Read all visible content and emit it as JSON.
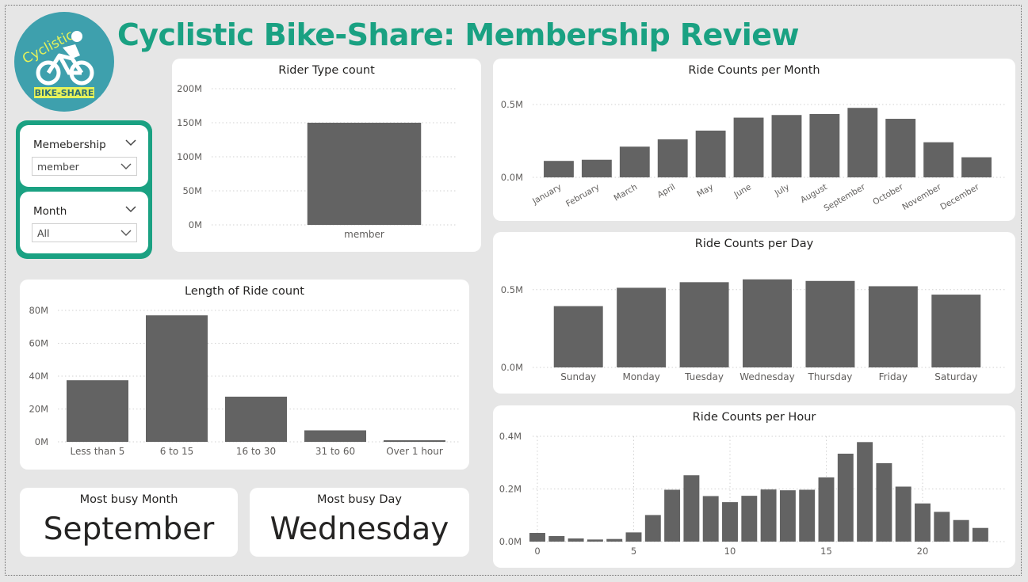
{
  "header": {
    "title": "Cyclistic Bike-Share: Membership Review",
    "logo_top_text": "Cyclistic",
    "logo_bottom_text": "BIKE-SHARE",
    "logo_icon": "cyclist-icon"
  },
  "slicers": {
    "membership": {
      "label": "Memebership",
      "value": "member"
    },
    "month": {
      "label": "Month",
      "value": "All"
    }
  },
  "kpis": {
    "busy_month": {
      "label": "Most busy Month",
      "value": "September"
    },
    "busy_day": {
      "label": "Most busy Day",
      "value": "Wednesday"
    }
  },
  "colors": {
    "accent": "#1aa182",
    "bar": "#636363",
    "logo_bg": "#3ea0ad",
    "logo_band": "#e6f25a"
  },
  "chart_data": [
    {
      "id": "rider",
      "type": "bar",
      "title": "Rider Type count",
      "categories": [
        "member"
      ],
      "values": [
        150000000
      ],
      "ylim": [
        0,
        200000000
      ],
      "yticks": [
        0,
        50000000,
        100000000,
        150000000,
        200000000
      ],
      "ytick_labels": [
        "0M",
        "50M",
        "100M",
        "150M",
        "200M"
      ],
      "grid": true
    },
    {
      "id": "length",
      "type": "bar",
      "title": "Length of Ride count",
      "categories": [
        "Less than 5",
        "6 to 15",
        "16 to 30",
        "31 to 60",
        "Over 1 hour"
      ],
      "values": [
        37500000,
        77000000,
        27500000,
        7000000,
        1000000
      ],
      "ylim": [
        0,
        80000000
      ],
      "yticks": [
        0,
        20000000,
        40000000,
        60000000,
        80000000
      ],
      "ytick_labels": [
        "0M",
        "20M",
        "40M",
        "60M",
        "80M"
      ],
      "grid": true
    },
    {
      "id": "month",
      "type": "bar",
      "title": "Ride Counts per Month",
      "categories": [
        "January",
        "February",
        "March",
        "April",
        "May",
        "June",
        "July",
        "August",
        "September",
        "October",
        "November",
        "December"
      ],
      "values": [
        113000,
        121000,
        211000,
        261000,
        321000,
        410000,
        428000,
        435000,
        477000,
        402000,
        241000,
        138000
      ],
      "ylim": [
        0,
        500000
      ],
      "yticks": [
        0,
        500000
      ],
      "ytick_labels": [
        "0.0M",
        "0.5M"
      ],
      "grid": true
    },
    {
      "id": "day",
      "type": "bar",
      "title": "Ride Counts per Day",
      "categories": [
        "Sunday",
        "Monday",
        "Tuesday",
        "Wednesday",
        "Thursday",
        "Friday",
        "Saturday"
      ],
      "values": [
        394000,
        512000,
        548000,
        566000,
        556000,
        522000,
        468000
      ],
      "ylim": [
        0,
        560000
      ],
      "yticks": [
        0,
        500000
      ],
      "ytick_labels": [
        "0.0M",
        "0.5M"
      ],
      "grid": true
    },
    {
      "id": "hour",
      "type": "bar",
      "title": "Ride Counts per Hour",
      "x": [
        0,
        1,
        2,
        3,
        4,
        5,
        6,
        7,
        8,
        9,
        10,
        11,
        12,
        13,
        14,
        15,
        16,
        17,
        18,
        19,
        20,
        21,
        22,
        23
      ],
      "values": [
        33000,
        21000,
        12000,
        8000,
        10000,
        35000,
        101000,
        197000,
        252000,
        173000,
        150000,
        174000,
        198000,
        195000,
        197000,
        244000,
        334000,
        378000,
        298000,
        209000,
        145000,
        113000,
        82000,
        52000
      ],
      "xticks": [
        0,
        5,
        10,
        15,
        20
      ],
      "ylim": [
        0,
        400000
      ],
      "yticks": [
        0,
        200000,
        400000
      ],
      "ytick_labels": [
        "0.0M",
        "0.2M",
        "0.4M"
      ],
      "grid": true
    }
  ]
}
